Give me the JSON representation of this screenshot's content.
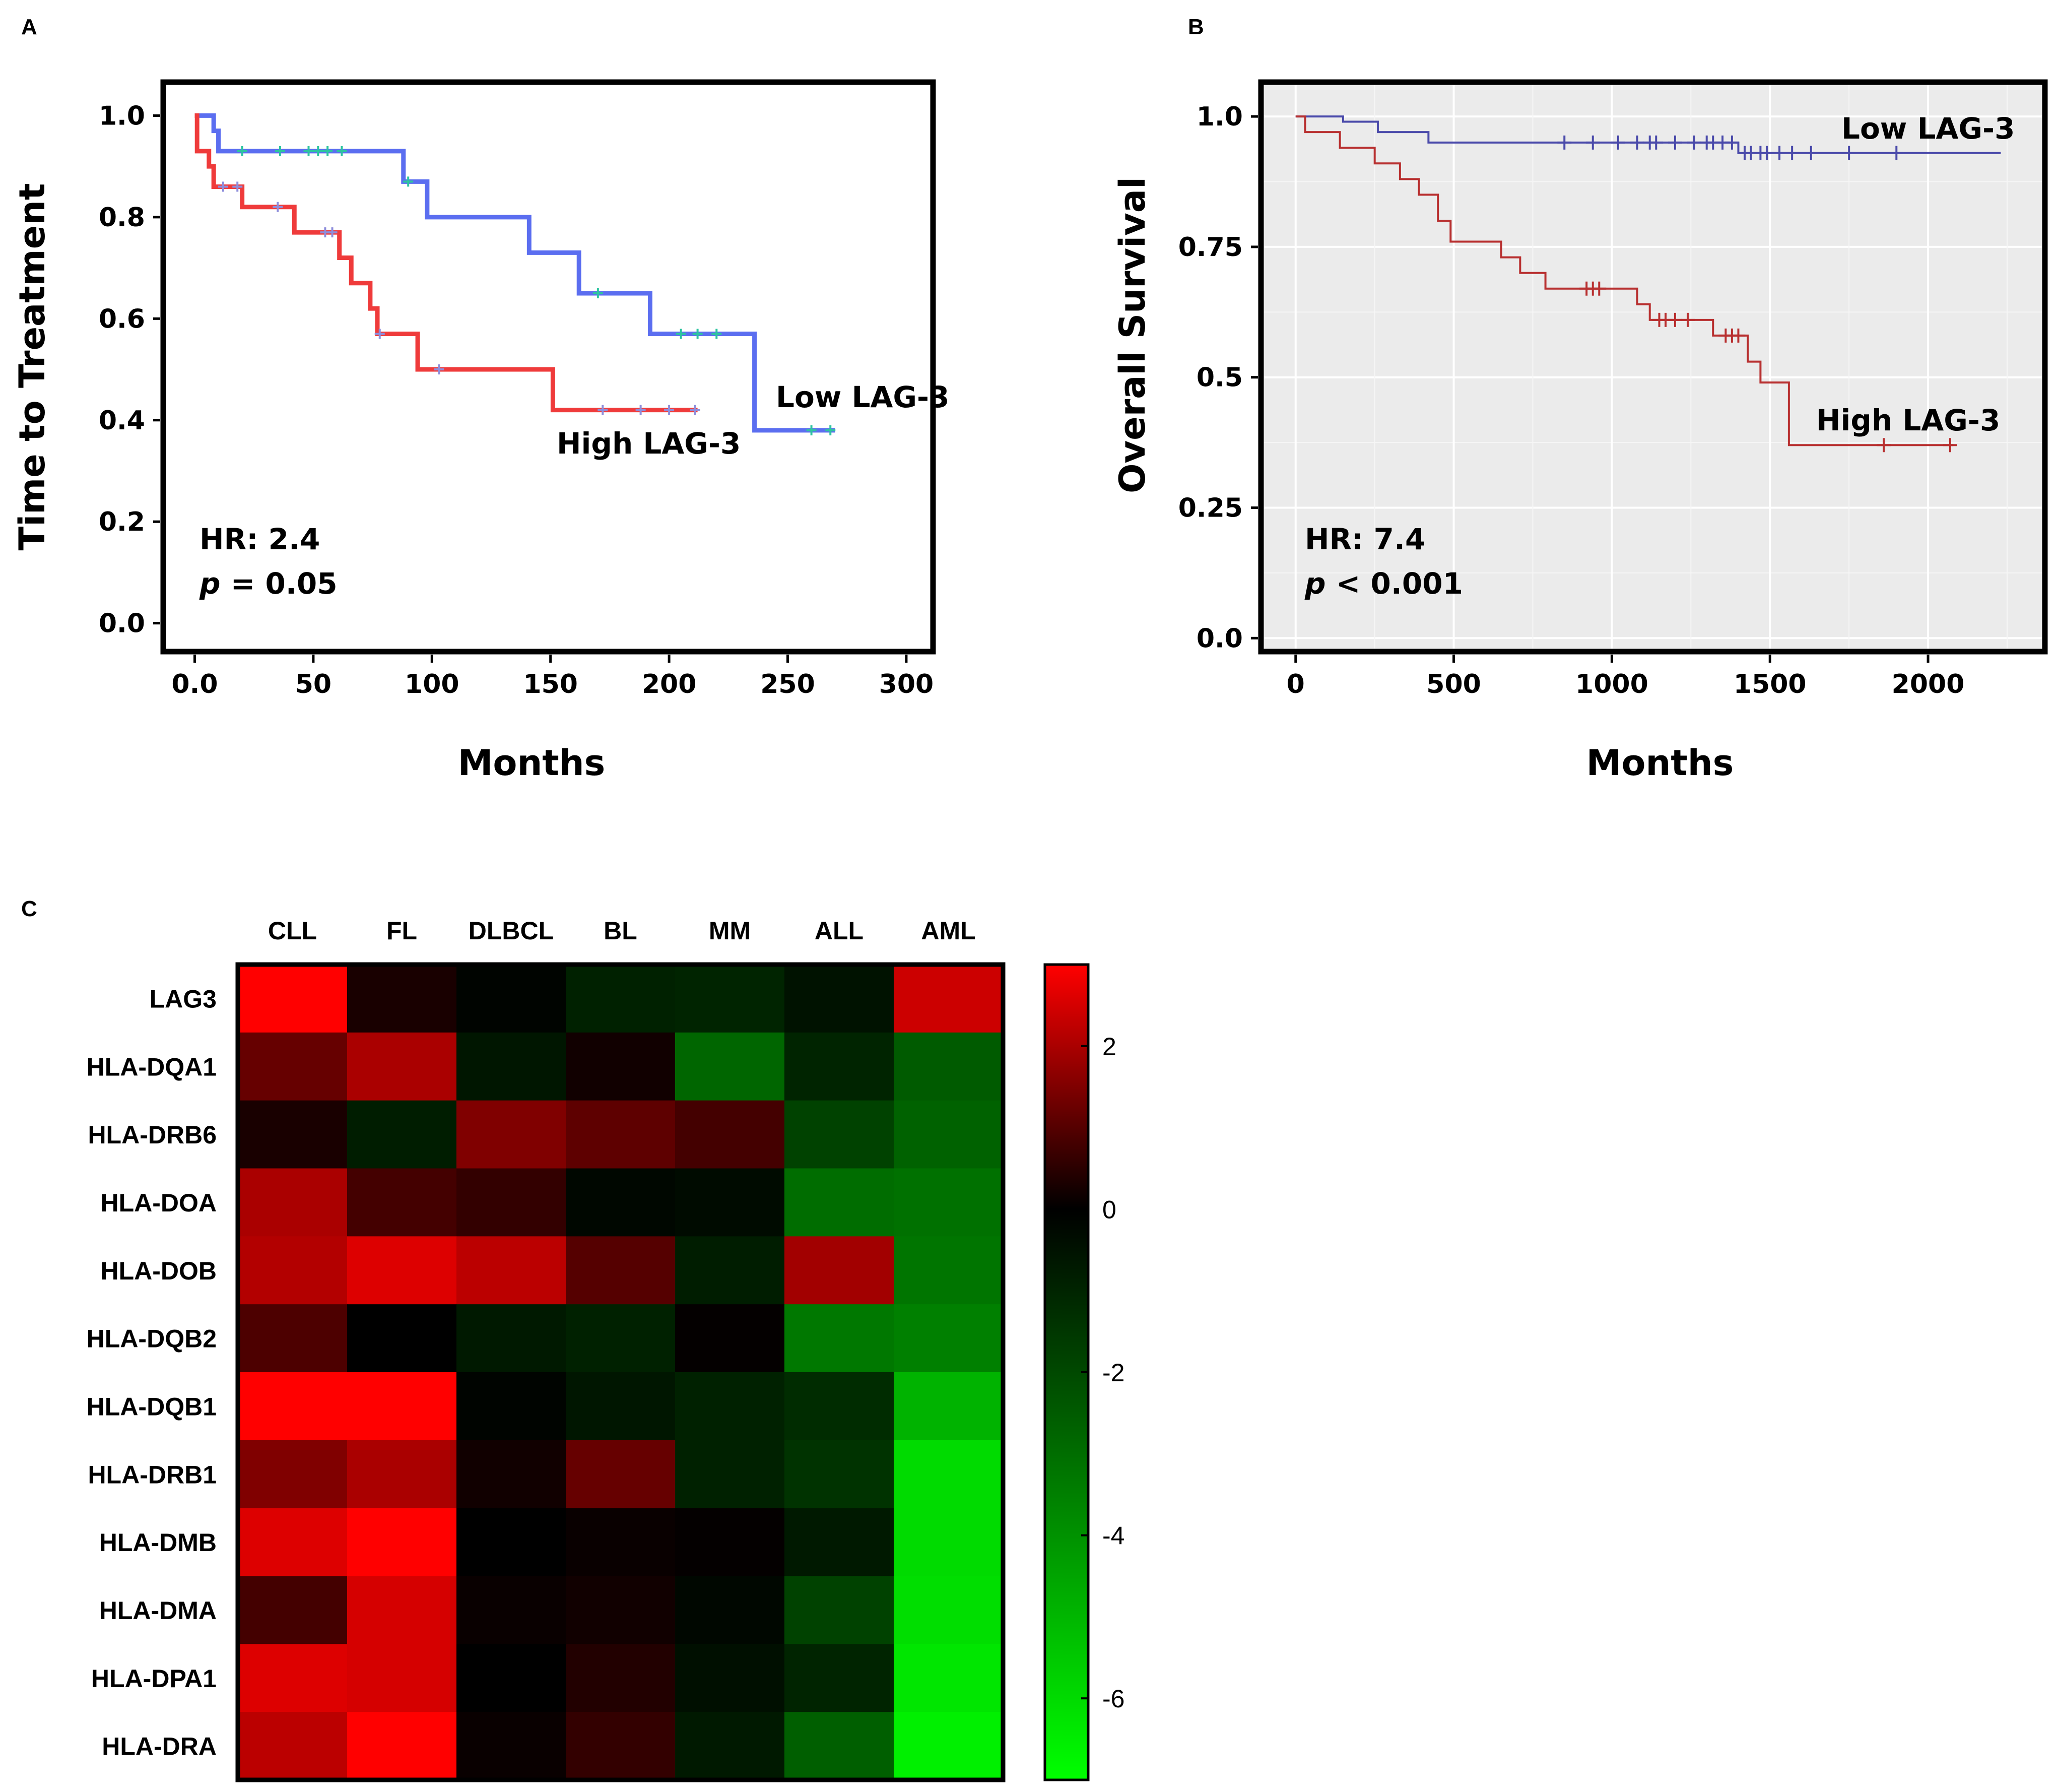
{
  "panels": {
    "a": "A",
    "b": "B",
    "c": "C"
  },
  "chart_data": [
    {
      "panel": "A",
      "type": "line",
      "subtype": "kaplan-meier",
      "xlabel": "Months",
      "ylabel": "Time to Treatment",
      "xlim": [
        -12,
        310
      ],
      "ylim": [
        -0.05,
        1.06
      ],
      "xticks": [
        0,
        50,
        100,
        150,
        200,
        250,
        300
      ],
      "xtick_labels": [
        "0.0",
        "50",
        "100",
        "150",
        "200",
        "250",
        "300"
      ],
      "yticks": [
        0,
        0.2,
        0.4,
        0.6,
        0.8,
        1.0
      ],
      "ytick_labels": [
        "0.0",
        "0.2",
        "0.4",
        "0.6",
        "0.8",
        "1.0"
      ],
      "annotations": {
        "hr": "HR: 2.4",
        "p_symbol": "p",
        "p_value": " = 0.05"
      },
      "series": [
        {
          "name": "Low LAG-3",
          "label": "Low LAG-3",
          "color": "#5b6ef0",
          "censor_color": "#2ec4a0",
          "steps": [
            [
              0,
              1.0
            ],
            [
              8,
              0.97
            ],
            [
              10,
              0.93
            ],
            [
              88,
              0.87
            ],
            [
              98,
              0.8
            ],
            [
              141,
              0.73
            ],
            [
              162,
              0.65
            ],
            [
              192,
              0.57
            ],
            [
              236,
              0.38
            ],
            [
              270,
              0.38
            ]
          ],
          "censors": [
            [
              20,
              0.93
            ],
            [
              36,
              0.93
            ],
            [
              48,
              0.93
            ],
            [
              52,
              0.93
            ],
            [
              56,
              0.93
            ],
            [
              62,
              0.93
            ],
            [
              90,
              0.87
            ],
            [
              170,
              0.65
            ],
            [
              205,
              0.57
            ],
            [
              212,
              0.57
            ],
            [
              220,
              0.57
            ],
            [
              260,
              0.38
            ],
            [
              268,
              0.38
            ]
          ]
        },
        {
          "name": "High LAG-3",
          "label": "High LAG-3",
          "color": "#ef3b3b",
          "censor_color": "#8e8edc",
          "steps": [
            [
              0,
              1.0
            ],
            [
              1,
              0.93
            ],
            [
              6,
              0.9
            ],
            [
              8,
              0.86
            ],
            [
              20,
              0.82
            ],
            [
              42,
              0.77
            ],
            [
              61,
              0.72
            ],
            [
              66,
              0.67
            ],
            [
              74,
              0.62
            ],
            [
              77,
              0.57
            ],
            [
              94,
              0.5
            ],
            [
              151,
              0.42
            ],
            [
              212,
              0.42
            ]
          ],
          "censors": [
            [
              12,
              0.86
            ],
            [
              18,
              0.86
            ],
            [
              35,
              0.82
            ],
            [
              55,
              0.77
            ],
            [
              58,
              0.77
            ],
            [
              78,
              0.57
            ],
            [
              103,
              0.5
            ],
            [
              172,
              0.42
            ],
            [
              188,
              0.42
            ],
            [
              200,
              0.42
            ],
            [
              211,
              0.42
            ]
          ]
        }
      ]
    },
    {
      "panel": "B",
      "type": "line",
      "subtype": "kaplan-meier",
      "xlabel": "Months",
      "ylabel": "Overall Survival",
      "xlim": [
        -100,
        2360
      ],
      "ylim": [
        -0.02,
        1.06
      ],
      "xticks": [
        0,
        500,
        1000,
        1500,
        2000
      ],
      "xtick_labels": [
        "0",
        "500",
        "1000",
        "1500",
        "2000"
      ],
      "yticks": [
        0,
        0.25,
        0.5,
        0.75,
        1.0
      ],
      "ytick_labels": [
        "0.0",
        "0.25",
        "0.5",
        "0.75",
        "1.0"
      ],
      "annotations": {
        "hr": "HR: 7.4",
        "p_symbol": "p",
        "p_value": " < 0.001"
      },
      "series": [
        {
          "name": "Low LAG-3",
          "label": "Low LAG-3",
          "color": "#4a4aaa",
          "steps": [
            [
              0,
              1.0
            ],
            [
              150,
              0.99
            ],
            [
              260,
              0.97
            ],
            [
              420,
              0.95
            ],
            [
              1400,
              0.93
            ],
            [
              2230,
              0.93
            ]
          ],
          "censors": [
            [
              850,
              0.95
            ],
            [
              940,
              0.95
            ],
            [
              1020,
              0.95
            ],
            [
              1080,
              0.95
            ],
            [
              1120,
              0.95
            ],
            [
              1140,
              0.95
            ],
            [
              1200,
              0.95
            ],
            [
              1260,
              0.95
            ],
            [
              1300,
              0.95
            ],
            [
              1320,
              0.95
            ],
            [
              1350,
              0.95
            ],
            [
              1380,
              0.95
            ],
            [
              1420,
              0.93
            ],
            [
              1440,
              0.93
            ],
            [
              1470,
              0.93
            ],
            [
              1490,
              0.93
            ],
            [
              1530,
              0.93
            ],
            [
              1570,
              0.93
            ],
            [
              1630,
              0.93
            ],
            [
              1750,
              0.93
            ],
            [
              1900,
              0.93
            ]
          ]
        },
        {
          "name": "High LAG-3",
          "label": "High LAG-3",
          "color": "#b83030",
          "steps": [
            [
              0,
              1.0
            ],
            [
              30,
              0.97
            ],
            [
              140,
              0.94
            ],
            [
              250,
              0.91
            ],
            [
              330,
              0.88
            ],
            [
              390,
              0.85
            ],
            [
              450,
              0.8
            ],
            [
              490,
              0.76
            ],
            [
              650,
              0.73
            ],
            [
              710,
              0.7
            ],
            [
              790,
              0.67
            ],
            [
              1080,
              0.64
            ],
            [
              1120,
              0.61
            ],
            [
              1320,
              0.58
            ],
            [
              1430,
              0.53
            ],
            [
              1470,
              0.49
            ],
            [
              1560,
              0.37
            ],
            [
              2080,
              0.37
            ]
          ],
          "censors": [
            [
              920,
              0.67
            ],
            [
              940,
              0.67
            ],
            [
              960,
              0.67
            ],
            [
              1150,
              0.61
            ],
            [
              1170,
              0.61
            ],
            [
              1200,
              0.61
            ],
            [
              1240,
              0.61
            ],
            [
              1360,
              0.58
            ],
            [
              1380,
              0.58
            ],
            [
              1400,
              0.58
            ],
            [
              1860,
              0.37
            ],
            [
              2070,
              0.37
            ]
          ]
        }
      ]
    },
    {
      "panel": "C",
      "type": "heatmap",
      "columns": [
        "CLL",
        "FL",
        "DLBCL",
        "BL",
        "MM",
        "ALL",
        "AML"
      ],
      "rows": [
        "LAG3",
        "HLA-DQA1",
        "HLA-DRB6",
        "HLA-DOA",
        "HLA-DOB",
        "HLA-DQB2",
        "HLA-DQB1",
        "HLA-DRB1",
        "HLA-DMB",
        "HLA-DMA",
        "HLA-DPA1",
        "HLA-DRA"
      ],
      "values": [
        [
          3.0,
          0.3,
          -0.1,
          -0.9,
          -1.0,
          -0.5,
          2.4
        ],
        [
          1.2,
          2.0,
          -0.6,
          0.2,
          -2.8,
          -1.0,
          -2.5
        ],
        [
          0.3,
          -0.8,
          1.5,
          1.1,
          0.8,
          -1.8,
          -2.7
        ],
        [
          2.0,
          0.8,
          0.6,
          -0.2,
          -0.3,
          -3.0,
          -3.1
        ],
        [
          2.1,
          2.6,
          2.2,
          1.0,
          -0.8,
          1.9,
          -3.2
        ],
        [
          0.9,
          0.0,
          -0.7,
          -0.9,
          0.05,
          -3.3,
          -3.5
        ],
        [
          3.0,
          3.0,
          -0.1,
          -0.6,
          -0.9,
          -1.2,
          -4.9
        ],
        [
          1.5,
          2.0,
          0.2,
          1.2,
          -0.9,
          -1.4,
          -6.0
        ],
        [
          2.6,
          3.2,
          0.0,
          0.1,
          0.05,
          -0.7,
          -6.0
        ],
        [
          0.8,
          2.5,
          0.1,
          0.2,
          -0.2,
          -1.8,
          -6.1
        ],
        [
          2.6,
          2.5,
          0.0,
          0.4,
          -0.4,
          -1.0,
          -6.3
        ],
        [
          2.2,
          3.0,
          0.1,
          0.6,
          -0.7,
          -2.6,
          -6.6
        ]
      ],
      "color_scale": {
        "min": -7,
        "max": 3,
        "low_color": "#00ff00",
        "mid_color": "#000000",
        "high_color": "#ff0000"
      },
      "colorbar_ticks": [
        2,
        0,
        -2,
        -4,
        -6
      ],
      "colorbar_tick_labels": [
        "2",
        "0",
        "-2",
        "-4",
        "-6"
      ]
    }
  ]
}
